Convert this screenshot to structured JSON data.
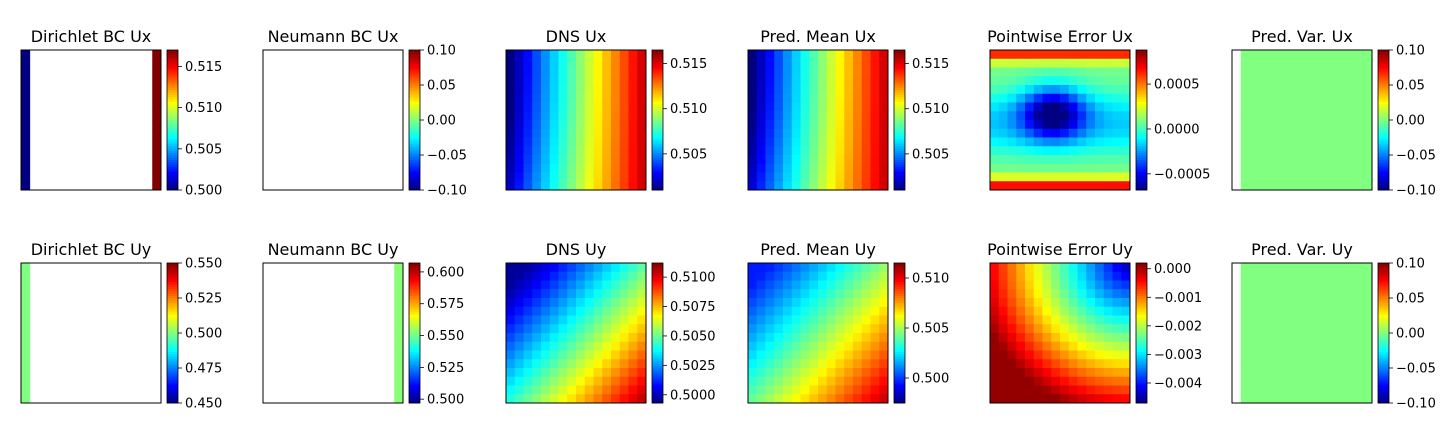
{
  "chart_data": [
    {
      "type": "heatmap",
      "title": "Dirichlet BC Ux",
      "field": "dirichlet",
      "colormap": "jet",
      "params": {
        "left": 0.5,
        "right": 0.517
      },
      "clim": [
        0.5,
        0.517
      ],
      "ticks": [
        {
          "v": 0.5,
          "label": "0.500"
        },
        {
          "v": 0.505,
          "label": "0.505"
        },
        {
          "v": 0.51,
          "label": "0.510"
        },
        {
          "v": 0.515,
          "label": "0.515"
        }
      ]
    },
    {
      "type": "heatmap",
      "title": "Neumann BC Ux",
      "field": "empty",
      "colormap": "jet",
      "params": {},
      "clim": [
        -0.1,
        0.1
      ],
      "ticks": [
        {
          "v": -0.1,
          "label": "−0.10"
        },
        {
          "v": -0.05,
          "label": "−0.05"
        },
        {
          "v": 0.0,
          "label": "0.00"
        },
        {
          "v": 0.05,
          "label": "0.05"
        },
        {
          "v": 0.1,
          "label": "0.10"
        }
      ]
    },
    {
      "type": "heatmap",
      "title": "DNS Ux",
      "field": "ux",
      "colormap": "jet",
      "params": {
        "bend": 0.0015
      },
      "clim": [
        0.501,
        0.5165
      ],
      "ticks": [
        {
          "v": 0.505,
          "label": "0.505"
        },
        {
          "v": 0.51,
          "label": "0.510"
        },
        {
          "v": 0.515,
          "label": "0.515"
        }
      ]
    },
    {
      "type": "heatmap",
      "title": "Pred. Mean Ux",
      "field": "ux",
      "colormap": "jet",
      "params": {
        "bend": 0.0018
      },
      "clim": [
        0.501,
        0.5165
      ],
      "ticks": [
        {
          "v": 0.505,
          "label": "0.505"
        },
        {
          "v": 0.51,
          "label": "0.510"
        },
        {
          "v": 0.515,
          "label": "0.515"
        }
      ]
    },
    {
      "type": "heatmap",
      "title": "Pointwise Error Ux",
      "field": "errux",
      "colormap": "jet",
      "params": {},
      "clim": [
        -0.00068,
        0.00088
      ],
      "ticks": [
        {
          "v": -0.0005,
          "label": "−0.0005"
        },
        {
          "v": 0.0,
          "label": "0.0000"
        },
        {
          "v": 0.0005,
          "label": "0.0005"
        }
      ]
    },
    {
      "type": "heatmap",
      "title": "Pred. Var. Ux",
      "field": "varfield",
      "colormap": "jet",
      "params": {},
      "clim": [
        -0.1,
        0.1
      ],
      "ticks": [
        {
          "v": -0.1,
          "label": "−0.10"
        },
        {
          "v": -0.05,
          "label": "−0.05"
        },
        {
          "v": 0.0,
          "label": "0.00"
        },
        {
          "v": 0.05,
          "label": "0.05"
        },
        {
          "v": 0.1,
          "label": "0.10"
        }
      ]
    },
    {
      "type": "heatmap",
      "title": "Dirichlet BC Uy",
      "field": "dirichlet_left",
      "colormap": "jet",
      "params": {
        "left": 0.5
      },
      "clim": [
        0.45,
        0.55
      ],
      "ticks": [
        {
          "v": 0.45,
          "label": "0.450"
        },
        {
          "v": 0.475,
          "label": "0.475"
        },
        {
          "v": 0.5,
          "label": "0.500"
        },
        {
          "v": 0.525,
          "label": "0.525"
        },
        {
          "v": 0.55,
          "label": "0.550"
        }
      ]
    },
    {
      "type": "heatmap",
      "title": "Neumann BC Uy",
      "field": "neumann_right",
      "colormap": "jet",
      "params": {
        "right": 0.553
      },
      "clim": [
        0.497,
        0.607
      ],
      "ticks": [
        {
          "v": 0.5,
          "label": "0.500"
        },
        {
          "v": 0.525,
          "label": "0.525"
        },
        {
          "v": 0.55,
          "label": "0.550"
        },
        {
          "v": 0.575,
          "label": "0.575"
        },
        {
          "v": 0.6,
          "label": "0.600"
        }
      ]
    },
    {
      "type": "heatmap",
      "title": "DNS Uy",
      "field": "uy",
      "colormap": "jet",
      "params": {},
      "clim": [
        0.4993,
        0.5112
      ],
      "ticks": [
        {
          "v": 0.5,
          "label": "0.5000"
        },
        {
          "v": 0.5025,
          "label": "0.5025"
        },
        {
          "v": 0.505,
          "label": "0.5050"
        },
        {
          "v": 0.5075,
          "label": "0.5075"
        },
        {
          "v": 0.51,
          "label": "0.5100"
        }
      ]
    },
    {
      "type": "heatmap",
      "title": "Pred. Mean Uy",
      "field": "uy",
      "colormap": "jet",
      "params": {},
      "clim": [
        0.4975,
        0.5115
      ],
      "ticks": [
        {
          "v": 0.5,
          "label": "0.500"
        },
        {
          "v": 0.505,
          "label": "0.505"
        },
        {
          "v": 0.51,
          "label": "0.510"
        }
      ]
    },
    {
      "type": "heatmap",
      "title": "Pointwise Error Uy",
      "field": "erruy",
      "colormap": "jet",
      "params": {},
      "clim": [
        -0.0047,
        0.0002
      ],
      "ticks": [
        {
          "v": -0.004,
          "label": "−0.004"
        },
        {
          "v": -0.003,
          "label": "−0.003"
        },
        {
          "v": -0.002,
          "label": "−0.002"
        },
        {
          "v": -0.001,
          "label": "−0.001"
        },
        {
          "v": 0.0,
          "label": "0.000"
        }
      ]
    },
    {
      "type": "heatmap",
      "title": "Pred. Var. Uy",
      "field": "varfield",
      "colormap": "jet",
      "params": {},
      "clim": [
        -0.1,
        0.1
      ],
      "ticks": [
        {
          "v": -0.1,
          "label": "−0.10"
        },
        {
          "v": -0.05,
          "label": "−0.05"
        },
        {
          "v": 0.0,
          "label": "0.00"
        },
        {
          "v": 0.05,
          "label": "0.05"
        },
        {
          "v": 0.1,
          "label": "0.10"
        }
      ]
    }
  ]
}
